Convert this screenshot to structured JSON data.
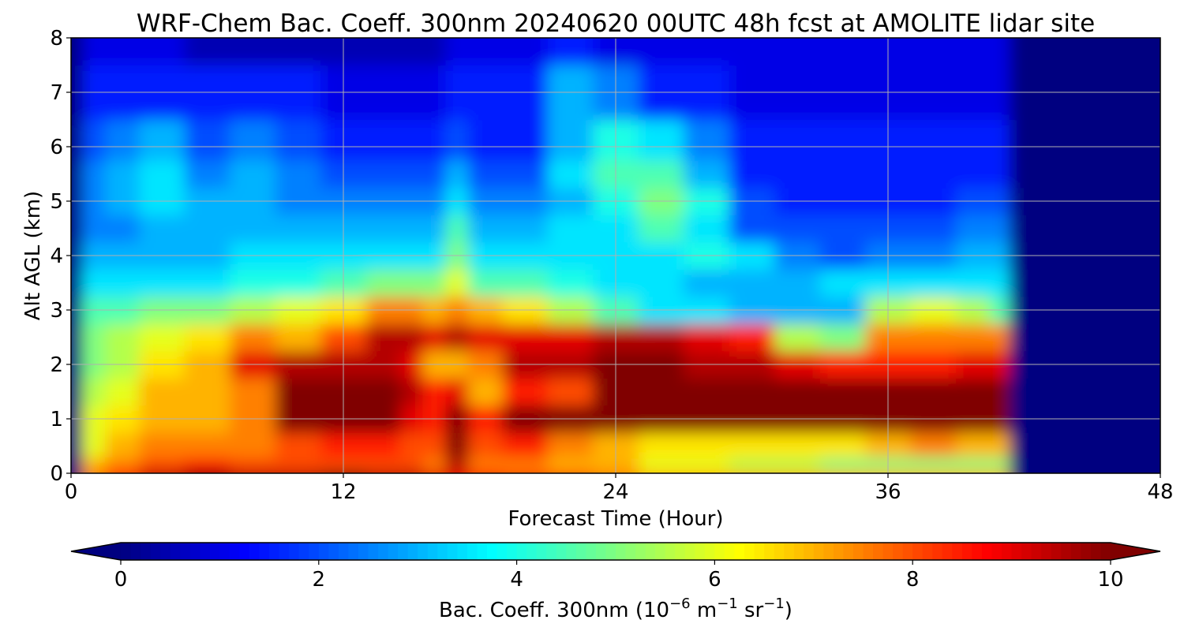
{
  "chart_data": {
    "type": "heatmap",
    "title": "WRF-Chem Bac. Coeff. 300nm  20240620 00UTC 48h fcst at AMOLITE lidar site",
    "xlabel": "Forecast Time (Hour)",
    "ylabel": "Alt AGL (km)",
    "xlim": [
      0,
      48
    ],
    "ylim": [
      0,
      8
    ],
    "xticks": [
      0,
      12,
      24,
      36,
      48
    ],
    "yticks": [
      0,
      1,
      2,
      3,
      4,
      5,
      6,
      7,
      8
    ],
    "grid": true,
    "colormap": "jet",
    "colorbar": {
      "label_main": "Bac. Coeff. 300nm  (10",
      "label_exp1": "−6",
      "label_mid": " m",
      "label_exp2": "−1",
      "label_mid2": " sr",
      "label_exp3": "−1",
      "label_end": ")",
      "ticks": [
        0,
        2,
        4,
        6,
        8,
        10
      ],
      "range": [
        0,
        10
      ],
      "extend": "both",
      "orientation": "horizontal",
      "placement": "bottom"
    },
    "x_hours": [
      0,
      1,
      2,
      4,
      6,
      8,
      10,
      12,
      14,
      15,
      16,
      17,
      18,
      20,
      22,
      24,
      26,
      28,
      30,
      32,
      34,
      36,
      38,
      40,
      41,
      41.7,
      42,
      48
    ],
    "y_km": [
      0,
      0.1,
      0.5,
      1,
      1.5,
      2,
      2.5,
      3,
      3.5,
      4,
      4.5,
      5,
      5.5,
      6,
      7,
      8
    ],
    "z": [
      [
        0,
        7.5,
        8.5,
        9.5,
        10,
        9.5,
        9.5,
        10,
        9.5,
        9.5,
        9,
        9,
        8.5,
        8,
        8,
        7.5,
        7,
        7,
        7,
        7,
        7,
        7,
        7,
        7,
        7,
        0,
        0,
        0
      ],
      [
        0,
        7,
        7.5,
        8,
        8.5,
        8,
        8,
        8,
        8,
        8,
        7.5,
        9.5,
        7.5,
        7.5,
        7,
        7,
        6,
        6,
        5.5,
        5.5,
        5,
        5,
        5,
        5,
        5,
        0,
        0,
        0
      ],
      [
        0,
        6,
        7,
        7.5,
        7.5,
        7.5,
        8,
        8.5,
        8.5,
        8,
        8,
        10,
        8,
        8.5,
        7.5,
        7,
        6.5,
        6.5,
        6.5,
        6.5,
        6.5,
        7,
        7.5,
        7,
        7,
        0,
        0,
        0
      ],
      [
        0,
        6,
        6.5,
        7,
        7,
        7.5,
        10,
        10,
        10,
        9,
        8.5,
        10,
        8.5,
        10,
        10,
        10,
        10,
        10,
        10,
        10,
        10,
        10,
        10,
        10,
        10,
        0,
        0,
        0
      ],
      [
        0,
        5.5,
        6,
        7,
        7,
        7.5,
        10,
        10,
        10,
        9.5,
        8.5,
        9,
        7,
        8.5,
        8,
        10,
        10,
        10,
        10,
        10,
        10,
        10,
        10,
        10,
        10,
        0,
        0,
        0
      ],
      [
        0,
        5,
        5.5,
        6.5,
        7,
        9,
        9.5,
        9.5,
        9.5,
        9,
        7,
        7,
        7.5,
        9.5,
        9.5,
        10,
        10,
        9.5,
        9.5,
        9,
        8.5,
        8.5,
        8.5,
        9,
        9,
        0,
        0,
        0
      ],
      [
        0,
        5,
        5.5,
        6,
        6.5,
        7.5,
        7,
        8,
        9.5,
        9.5,
        9,
        9.5,
        9,
        9,
        9,
        9.5,
        9.5,
        9,
        8.5,
        5.5,
        5,
        7.5,
        7.5,
        7.5,
        7.5,
        0,
        0,
        0
      ],
      [
        0,
        4.5,
        4.5,
        5,
        5,
        5.5,
        6,
        6.5,
        7.5,
        7.5,
        7,
        7.5,
        7,
        6.5,
        5.5,
        4.5,
        3.5,
        3.5,
        3,
        3,
        3,
        5.5,
        6,
        5.5,
        4.5,
        0,
        0,
        0
      ],
      [
        0,
        3.5,
        3.5,
        3.5,
        3.5,
        4,
        4,
        4.5,
        5,
        5,
        5,
        6,
        4.5,
        4.5,
        4,
        3.5,
        3.5,
        3,
        3,
        3,
        3.5,
        3.5,
        3.5,
        3.5,
        3.5,
        0,
        0,
        0
      ],
      [
        0,
        3,
        3,
        3,
        3,
        3.5,
        3.5,
        3.5,
        3.5,
        3.5,
        3.5,
        5,
        3.5,
        3.5,
        3.5,
        3.5,
        3.5,
        4,
        3.5,
        2.5,
        2,
        2.5,
        2.5,
        3,
        3,
        0,
        0,
        0
      ],
      [
        0,
        2.5,
        2.5,
        3,
        3,
        3,
        3,
        3,
        3,
        3,
        3,
        4.5,
        3,
        3,
        3.5,
        3.5,
        4.5,
        3.5,
        2,
        2,
        2,
        2,
        2,
        2.5,
        2.5,
        0,
        0,
        0
      ],
      [
        0,
        2.5,
        3,
        3.5,
        3,
        3,
        2.5,
        2.5,
        2.5,
        2.5,
        2.5,
        3.5,
        2.5,
        2.5,
        3,
        4,
        5,
        4,
        2,
        1.5,
        1.5,
        1.5,
        1.5,
        2,
        2,
        0,
        0,
        0
      ],
      [
        0,
        2.5,
        3,
        3.5,
        2.5,
        3,
        2.5,
        2,
        2,
        2,
        2,
        3,
        2,
        2,
        3.5,
        4.5,
        4.5,
        3,
        1.5,
        1.5,
        1.5,
        1.5,
        1.5,
        1.5,
        1.5,
        0,
        0,
        0
      ],
      [
        0,
        2,
        2.5,
        3,
        2,
        2.5,
        2,
        1.5,
        1.5,
        1.5,
        1.5,
        2,
        1.5,
        1.5,
        3,
        4,
        3.5,
        2.5,
        1.5,
        1.5,
        1.5,
        1.5,
        1.5,
        1.5,
        1.5,
        0,
        0,
        0
      ],
      [
        0,
        1.5,
        1.5,
        1.5,
        1.5,
        1.5,
        1.5,
        1,
        1,
        1,
        1,
        1.5,
        1.5,
        1.5,
        3,
        2.5,
        1.5,
        1.5,
        1,
        1,
        1,
        1,
        1,
        1,
        1,
        0,
        0,
        0
      ],
      [
        0,
        1,
        1,
        1,
        0.5,
        0.5,
        0.5,
        0.5,
        0.5,
        0.5,
        0.5,
        1,
        1,
        1,
        1.5,
        1,
        1,
        1,
        1,
        1,
        1,
        1,
        1,
        1,
        1,
        0,
        0,
        0
      ]
    ]
  }
}
